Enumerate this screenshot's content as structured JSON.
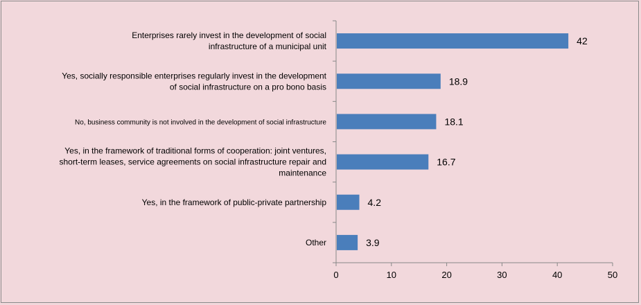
{
  "chart_data": {
    "type": "bar",
    "orientation": "horizontal",
    "categories": [
      "Enterprises rarely invest in the development of social infrastructure of a municipal unit",
      "Yes, socially responsible enterprises regularly invest in the development of social infrastructure on a pro bono basis",
      "No, business community is not involved in the development of social infrastructure",
      "Yes, in the framework of traditional forms of cooperation: joint ventures, short-term leases, service agreements on social infrastructure repair and maintenance",
      "Yes, in the framework of public-private partnership",
      "Other"
    ],
    "category_lines": [
      [
        "Enterprises rarely invest in the development of social",
        "infrastructure of a municipal unit"
      ],
      [
        "Yes, socially responsible enterprises regularly invest in the development",
        "of social infrastructure on a pro bono basis"
      ],
      [
        "No, business community is not involved in the development of social infrastructure"
      ],
      [
        "Yes, in the framework of traditional forms of cooperation: joint ventures,",
        "short-term leases, service agreements on social infrastructure repair and",
        "maintenance"
      ],
      [
        "Yes, in the framework of public-private partnership"
      ],
      [
        "Other"
      ]
    ],
    "values": [
      42,
      18.9,
      18.1,
      16.7,
      4.2,
      3.9
    ],
    "data_labels": [
      "42",
      "18.9",
      "18.1",
      "16.7",
      "4.2",
      "3.9"
    ],
    "xlim": [
      0,
      50
    ],
    "xticks": [
      0,
      10,
      20,
      30,
      40,
      50
    ],
    "title": "",
    "xlabel": "",
    "ylabel": "",
    "grid": false,
    "legend": "none",
    "bar_color": "#4a7ebb"
  }
}
